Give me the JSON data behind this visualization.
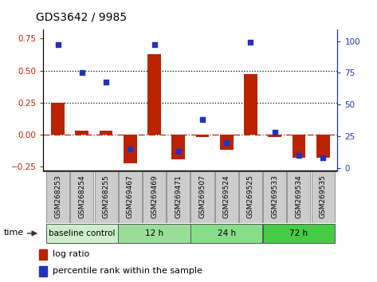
{
  "title": "GDS3642 / 9985",
  "samples": [
    "GSM268253",
    "GSM268254",
    "GSM268255",
    "GSM269467",
    "GSM269469",
    "GSM269471",
    "GSM269507",
    "GSM269524",
    "GSM269525",
    "GSM269533",
    "GSM269534",
    "GSM269535"
  ],
  "log_ratio": [
    0.25,
    0.03,
    0.03,
    -0.22,
    0.63,
    -0.19,
    -0.02,
    -0.12,
    0.47,
    -0.02,
    -0.18,
    -0.18
  ],
  "percentile_rank": [
    97,
    75,
    68,
    15,
    97,
    13,
    38,
    20,
    99,
    28,
    10,
    8
  ],
  "groups": [
    {
      "label": "baseline control",
      "start": 0,
      "end": 3,
      "color": "#cceecc"
    },
    {
      "label": "12 h",
      "start": 3,
      "end": 6,
      "color": "#99dd99"
    },
    {
      "label": "24 h",
      "start": 6,
      "end": 9,
      "color": "#88dd88"
    },
    {
      "label": "72 h",
      "start": 9,
      "end": 12,
      "color": "#44cc44"
    }
  ],
  "bar_color": "#bb2200",
  "dot_color": "#2233bb",
  "ylim_left": [
    -0.28,
    0.82
  ],
  "ylim_right": [
    -2,
    109
  ],
  "yticks_left": [
    -0.25,
    0,
    0.25,
    0.5,
    0.75
  ],
  "yticks_right": [
    0,
    25,
    50,
    75,
    100
  ],
  "hline_dotted": [
    0.25,
    0.5
  ],
  "hline_dashdot": 0.0,
  "bar_width": 0.55,
  "background_color": "#ffffff",
  "sample_box_color": "#cccccc",
  "group_border_color": "#555555"
}
